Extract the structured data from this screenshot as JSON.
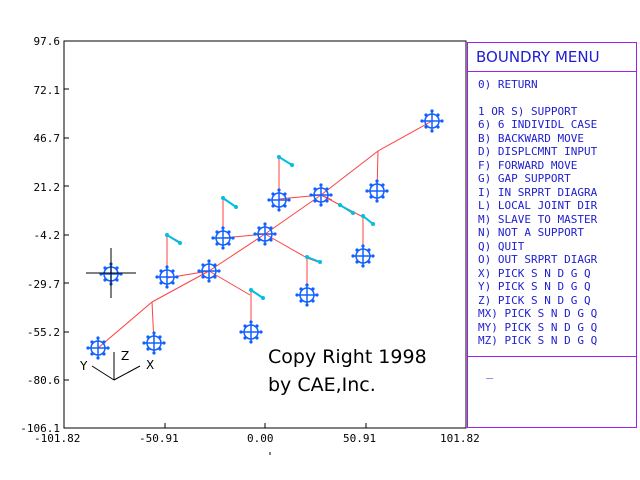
{
  "y_ticks": [
    "97.6",
    "72.1",
    "46.7",
    "21.2",
    "-4.2",
    "-29.7",
    "-55.2",
    "-80.6",
    "-106.1"
  ],
  "x_ticks": [
    "-101.82",
    "-50.91",
    "0.00",
    "50.91",
    "101.82"
  ],
  "triad": {
    "y": "Y",
    "z": "Z",
    "x": "X"
  },
  "copyright": {
    "line1": "Copy Right 1998",
    "line2": "by CAE,Inc."
  },
  "menu": {
    "title": "BOUNDRY MENU",
    "items": [
      "0) RETURN",
      "",
      "1 OR S) SUPPORT",
      "6) 6 INDIVIDL CASE",
      "B) BACKWARD MOVE",
      "D) DISPLCMNT INPUT",
      "F) FORWARD MOVE",
      "G) GAP SUPPORT",
      "I) IN SRPRT DIAGRA",
      "L) LOCAL JOINT DIR",
      "M) SLAVE TO MASTER",
      "N) NOT A SUPPORT",
      "Q) QUIT",
      "O) OUT SRPRT DIAGR",
      "X) PICK S N D G Q",
      "Y) PICK S N D G Q",
      "Z) PICK S N D G Q",
      "MX) PICK S N D G Q",
      "MY) PICK S N D G Q",
      "MZ) PICK S N D G Q"
    ],
    "command_prompt": "_"
  },
  "colors": {
    "pipe_line": "#ff4040",
    "support_icon": "#1060ff",
    "arrow": "#00c0e0",
    "menu_text": "#2020d0",
    "menu_border": "#a020f0"
  }
}
